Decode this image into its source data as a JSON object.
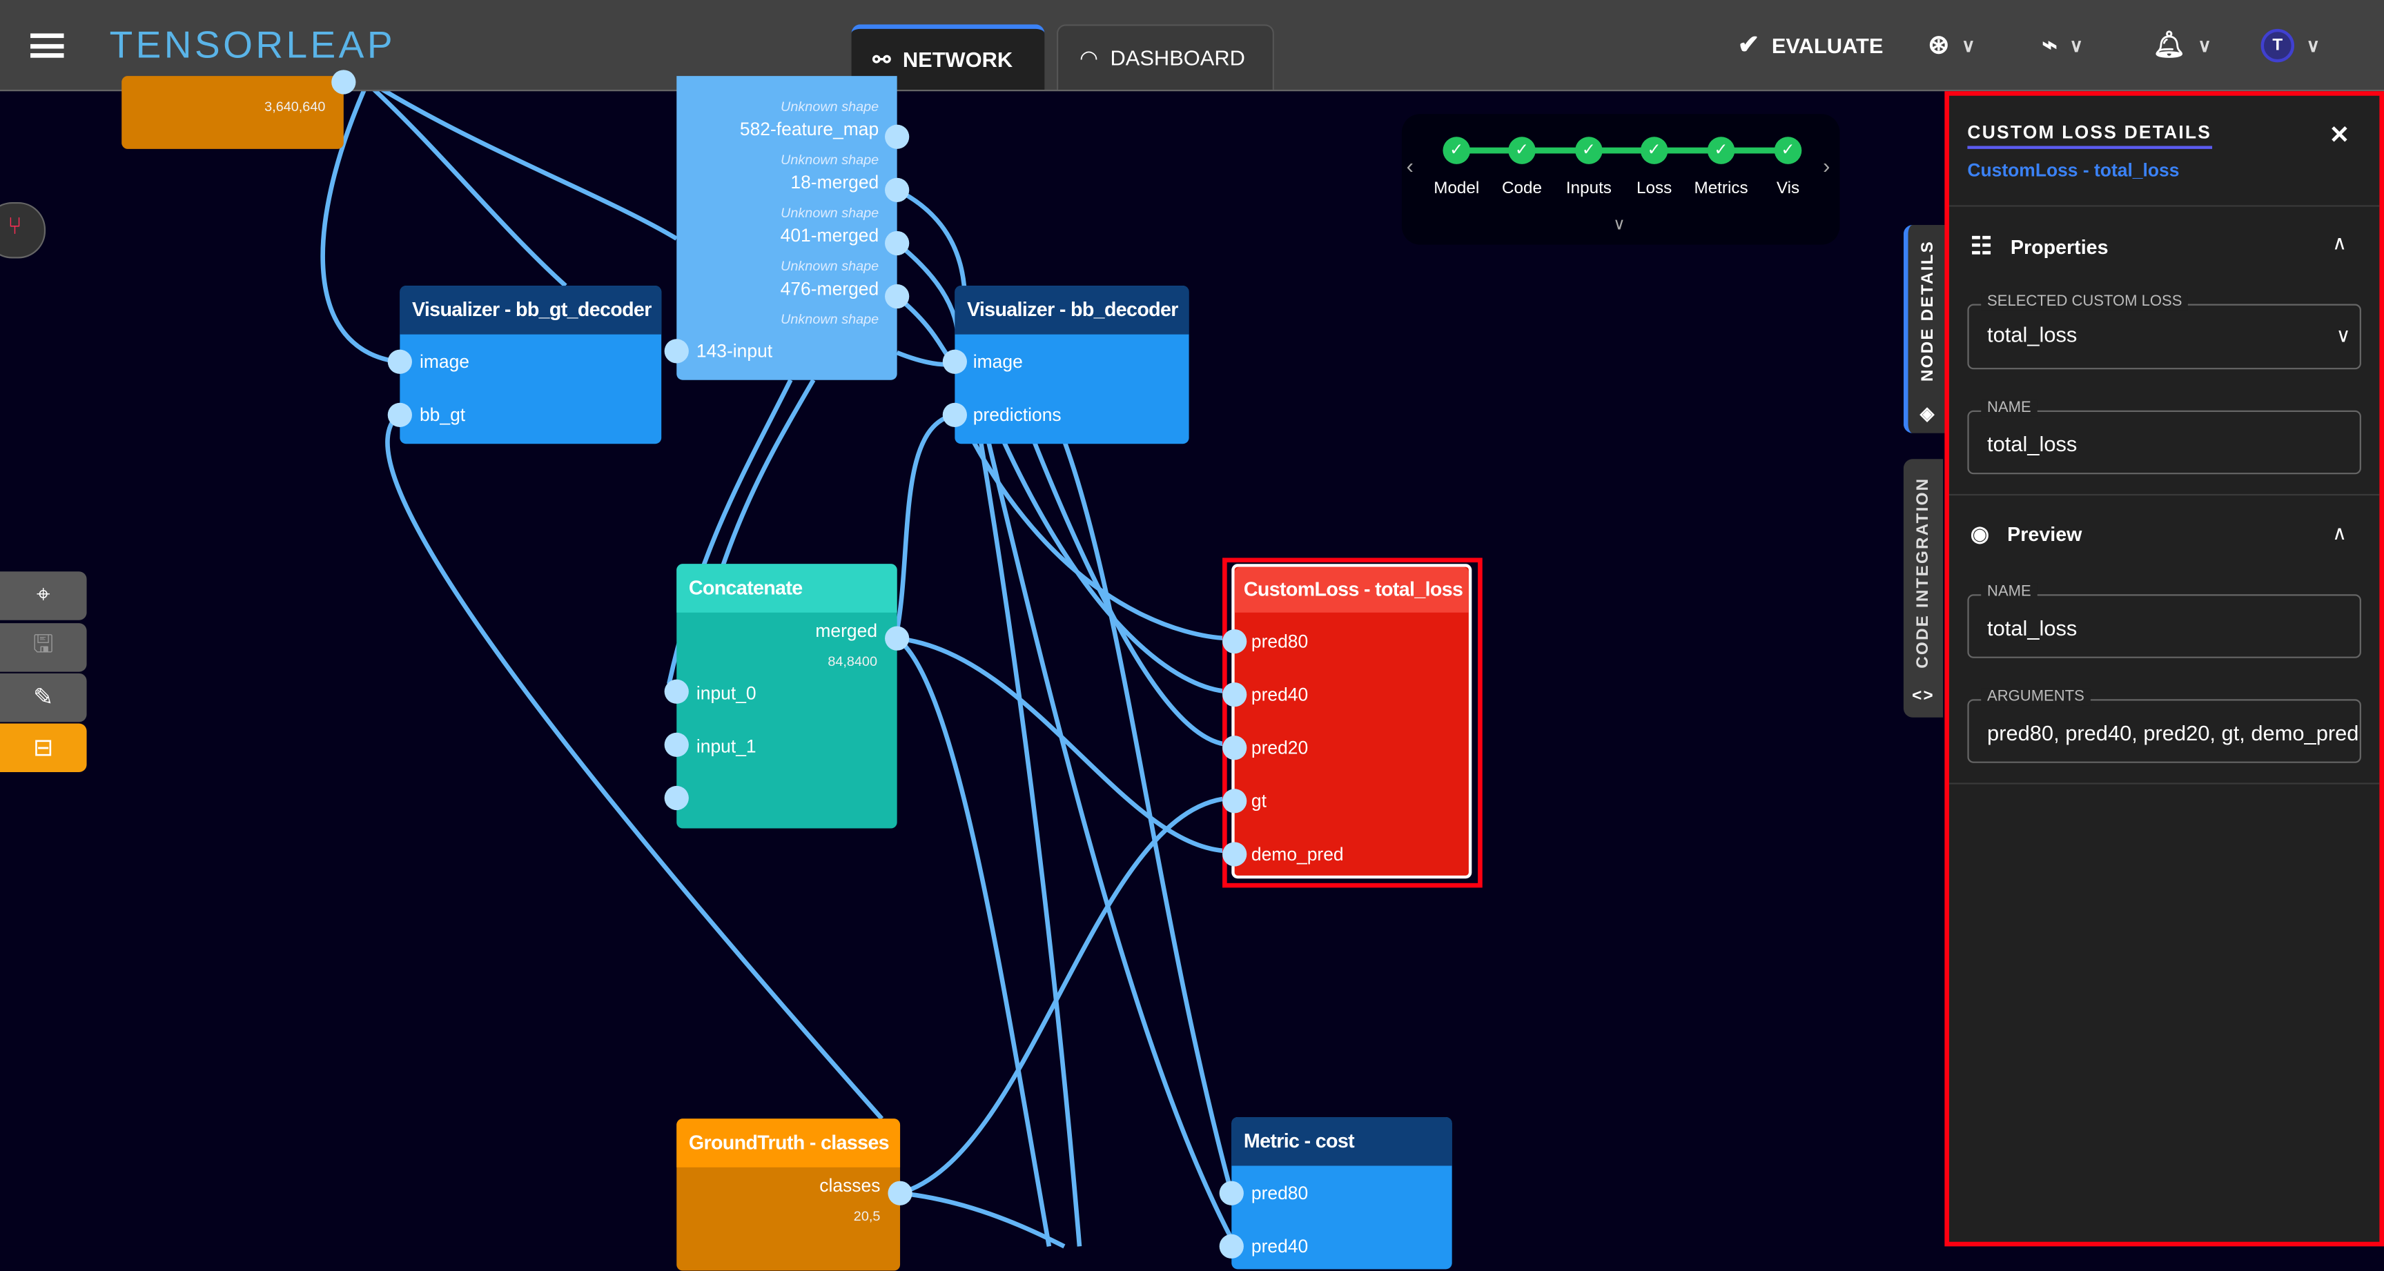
{
  "header": {
    "logo": "TENSORLEAP",
    "tabs": [
      {
        "label": "NETWORK",
        "active": true
      },
      {
        "label": "DASHBOARD",
        "active": false
      }
    ],
    "evaluate_label": "EVALUATE",
    "avatar_initial": "T"
  },
  "stepper": {
    "steps": [
      "Model",
      "Code",
      "Inputs",
      "Loss",
      "Metrics",
      "Vis"
    ],
    "status": "complete",
    "color": "#22c55e"
  },
  "nodes": {
    "top_orange": {
      "shape": "3,640,640",
      "color": "#d47c00"
    },
    "layer": {
      "unknown": "Unknown shape",
      "outputs": [
        "582-feature_map",
        "18-merged",
        "401-merged",
        "476-merged"
      ],
      "input": "143-input",
      "color": "#64b5f6"
    },
    "vis_gt": {
      "title": "Visualizer - bb_gt_decoder",
      "ports": [
        "image",
        "bb_gt"
      ]
    },
    "vis_pred": {
      "title": "Visualizer - bb_decoder",
      "ports": [
        "image",
        "predictions"
      ]
    },
    "concat": {
      "title": "Concatenate",
      "output": "merged",
      "shape": "84,8400",
      "ports": [
        "input_0",
        "input_1"
      ]
    },
    "custom_loss": {
      "title": "CustomLoss - total_loss",
      "ports": [
        "pred80",
        "pred40",
        "pred20",
        "gt",
        "demo_pred"
      ],
      "color": "#e31b0e"
    },
    "gt_classes": {
      "title": "GroundTruth - classes",
      "output": "classes",
      "shape": "20,5"
    },
    "metric": {
      "title": "Metric - cost",
      "ports": [
        "pred80",
        "pred40"
      ]
    }
  },
  "side_tabs": {
    "node_details": "NODE DETAILS",
    "code_integration": "CODE INTEGRATION"
  },
  "panel": {
    "title": "CUSTOM LOSS DETAILS",
    "subtitle": "CustomLoss - total_loss",
    "properties": {
      "heading": "Properties",
      "selected_label": "SELECTED CUSTOM LOSS",
      "selected_value": "total_loss",
      "name_label": "NAME",
      "name_value": "total_loss"
    },
    "preview": {
      "heading": "Preview",
      "name_label": "NAME",
      "name_value": "total_loss",
      "args_label": "ARGUMENTS",
      "args_value": "pred80, pred40, pred20, gt, demo_pred"
    }
  },
  "colors": {
    "accent": "#3b82f6",
    "highlight": "#ff0011",
    "edge": "#64b5f6"
  }
}
